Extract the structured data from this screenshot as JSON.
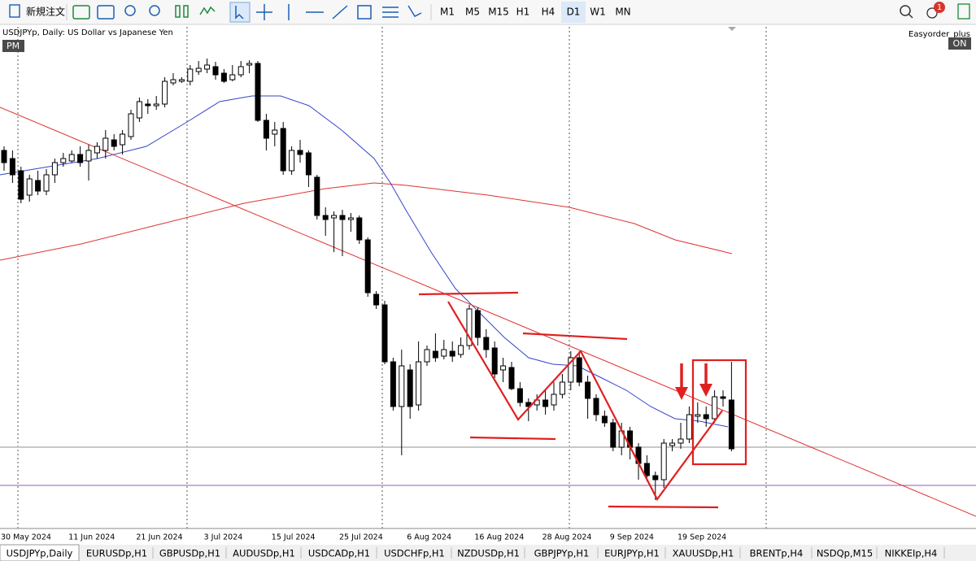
{
  "toolbar": {
    "new_order": "新規注文",
    "timeframes": [
      "M1",
      "M5",
      "M15",
      "H1",
      "H4",
      "D1",
      "W1",
      "MN"
    ],
    "notification_count": "1"
  },
  "chart_header": {
    "symbol": "USDJPYp, Daily:  US Dollar vs Japanese Yen",
    "session": "PM",
    "ea_name": "Easyorder_plus",
    "ea_status": "ON"
  },
  "chart_data": {
    "type": "candlestick",
    "categories": [
      "30 May 2024",
      null,
      null,
      null,
      null,
      null,
      null,
      null,
      "11 Jun 2024",
      null,
      null,
      null,
      null,
      null,
      null,
      null,
      "21 Jun 2024",
      null,
      null,
      null,
      null,
      null,
      null,
      null,
      "3 Jul 2024",
      null,
      null,
      null,
      null,
      null,
      null,
      null,
      "15 Jul 2024",
      null,
      null,
      null,
      null,
      null,
      null,
      null,
      "25 Jul 2024",
      null,
      null,
      null,
      null,
      null,
      null,
      null,
      "6 Aug 2024",
      null,
      null,
      null,
      null,
      null,
      null,
      null,
      "16 Aug 2024",
      null,
      null,
      null,
      null,
      null,
      null,
      null,
      "28 Aug 2024",
      null,
      null,
      null,
      null,
      null,
      null,
      null,
      "9 Sep 2024",
      null,
      null,
      null,
      null,
      null,
      null,
      null,
      "19 Sep 2024",
      null,
      null,
      null,
      null,
      null,
      null
    ],
    "open": [
      157.7,
      157.3,
      156.7,
      155.5,
      156.22,
      155.7,
      156.5,
      157.1,
      157.18,
      157.5,
      157.18,
      157.58,
      157.7,
      158.22,
      157.98,
      158.38,
      159.3,
      159.98,
      159.9,
      159.98,
      161.02,
      161.1,
      161.1,
      161.58,
      161.7,
      161.82,
      161.5,
      161.18,
      161.42,
      161.9,
      161.98,
      159.18,
      158.5,
      158.78,
      156.7,
      157.7,
      157.58,
      156.38,
      154.5,
      154.38,
      154.5,
      154.3,
      154.38,
      153.3,
      150.62,
      150.1,
      147.3,
      145.1,
      146.9,
      145.18,
      147.3,
      147.82,
      147.58,
      147.82,
      147.66,
      148.1,
      149.82,
      148.5,
      147.98,
      146.9,
      147.02,
      145.98,
      145.3,
      145.18,
      145.42,
      145.18,
      145.7,
      146.3,
      147.5,
      146.3,
      145.5,
      144.62,
      144.3,
      143.1,
      143.9,
      143.1,
      142.3,
      141.7,
      141.5,
      143.18,
      143.3,
      143.5,
      144.62,
      144.7,
      144.5,
      145.58,
      145.42
    ],
    "high": [
      157.9,
      157.7,
      156.9,
      156.5,
      156.7,
      156.78,
      157.3,
      157.58,
      157.7,
      157.9,
      157.98,
      158.1,
      158.7,
      158.5,
      158.7,
      159.7,
      160.3,
      160.22,
      160.38,
      161.3,
      161.5,
      161.3,
      161.9,
      162.1,
      162.22,
      162.06,
      161.7,
      161.9,
      162.1,
      162.14,
      162.1,
      159.5,
      159.1,
      159.1,
      157.9,
      158.22,
      157.7,
      156.5,
      154.9,
      154.7,
      154.78,
      154.62,
      154.5,
      153.42,
      150.78,
      150.3,
      147.5,
      147.9,
      147.18,
      148.3,
      148.1,
      148.7,
      148.38,
      148.3,
      148.5,
      150.1,
      149.98,
      148.9,
      148.3,
      147.5,
      147.3,
      146.3,
      145.5,
      145.7,
      145.9,
      146.3,
      146.7,
      147.82,
      147.82,
      146.62,
      145.7,
      144.9,
      144.5,
      144.3,
      144.1,
      143.3,
      142.7,
      141.9,
      143.5,
      143.5,
      144.3,
      145.1,
      145.3,
      145.1,
      145.9,
      145.9,
      147.3
    ],
    "low": [
      156.7,
      156.1,
      155.1,
      155.18,
      155.5,
      155.5,
      156.1,
      156.9,
      157.1,
      156.9,
      156.22,
      157.3,
      157.3,
      157.7,
      157.5,
      158.22,
      159.1,
      159.5,
      159.7,
      159.82,
      160.9,
      161.02,
      160.9,
      161.42,
      161.5,
      161.18,
      161.02,
      161.1,
      161.3,
      161.5,
      159.1,
      157.7,
      157.9,
      156.5,
      156.5,
      157.1,
      155.9,
      154.3,
      153.5,
      152.7,
      152.5,
      153.7,
      153.1,
      150.5,
      149.9,
      147.18,
      144.9,
      142.7,
      144.5,
      144.9,
      147.1,
      147.3,
      147.42,
      147.3,
      147.5,
      147.9,
      148.1,
      147.5,
      146.5,
      146.3,
      145.9,
      145.1,
      144.38,
      144.9,
      144.7,
      144.9,
      145.5,
      145.9,
      146.1,
      144.5,
      144.38,
      144.1,
      142.9,
      142.7,
      142.5,
      141.5,
      141.42,
      140.5,
      141.1,
      142.9,
      143.02,
      143.3,
      144.3,
      144.1,
      144.3,
      145.1,
      142.9
    ],
    "close": [
      157.1,
      156.5,
      155.3,
      156.3,
      155.7,
      156.5,
      157.1,
      157.3,
      157.5,
      157.1,
      157.7,
      157.9,
      158.3,
      157.9,
      158.5,
      159.5,
      160.1,
      159.9,
      159.98,
      161.1,
      161.18,
      161.18,
      161.7,
      161.74,
      161.9,
      161.42,
      161.1,
      161.42,
      161.82,
      161.98,
      159.18,
      158.3,
      158.7,
      156.7,
      157.7,
      157.5,
      156.5,
      154.5,
      154.3,
      154.5,
      154.3,
      154.38,
      153.3,
      150.7,
      150.1,
      147.3,
      145.1,
      147.1,
      145.1,
      147.3,
      147.9,
      147.5,
      147.9,
      147.58,
      148.1,
      149.9,
      148.5,
      147.9,
      146.7,
      147.1,
      145.98,
      145.3,
      145.1,
      145.42,
      145.1,
      145.7,
      146.3,
      147.5,
      146.3,
      145.5,
      144.7,
      144.3,
      143.1,
      143.9,
      143.1,
      142.3,
      141.7,
      141.5,
      143.3,
      143.3,
      143.5,
      144.7,
      144.7,
      144.5,
      145.58,
      145.5,
      143.02
    ],
    "up_color": "#ffffff",
    "down_color": "#000000",
    "ylim": [
      139.1,
      163.7
    ]
  },
  "tabs": [
    "USDJPYp,Daily",
    "EURUSDp,H1",
    "GBPUSDp,H1",
    "AUDUSDp,H1",
    "USDCADp,H1",
    "USDCHFp,H1",
    "NZDUSDp,H1",
    "GBPJPYp,H1",
    "EURJPYp,H1",
    "XAUUSDp,H1",
    "BRENTp,H4",
    "NSDQp,M15",
    "NIKKEIp,H4"
  ]
}
